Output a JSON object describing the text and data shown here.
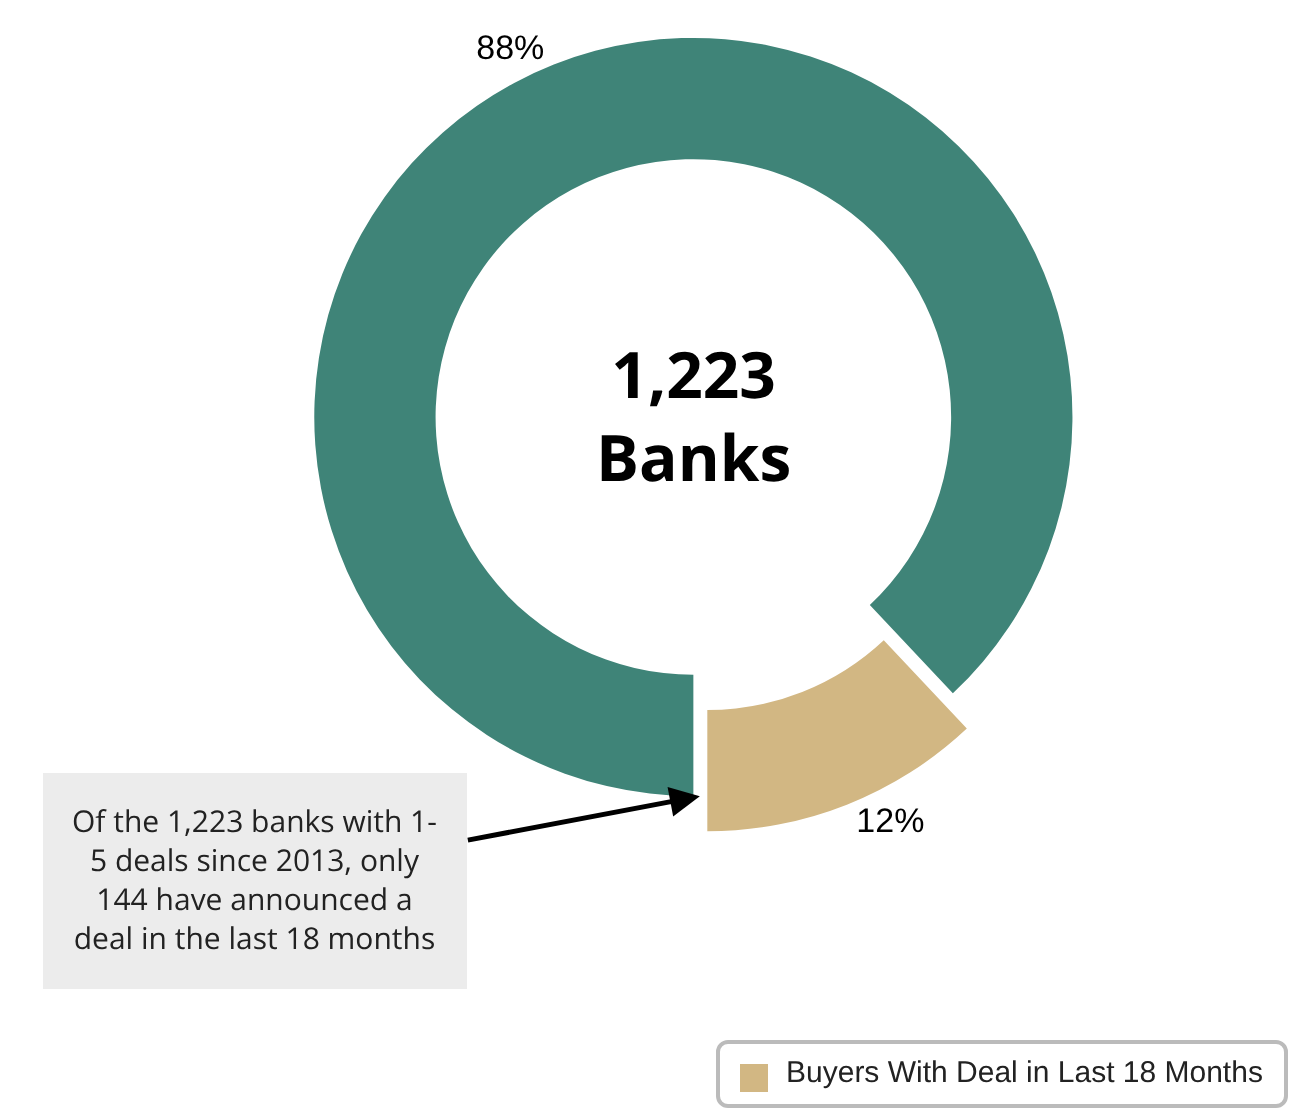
{
  "chart_data": {
    "type": "donut",
    "categories": [
      null,
      "Buyers With Deal in Last 18 Months"
    ],
    "values": [
      88,
      12
    ],
    "colors": [
      "#3f8478",
      "#d2b783"
    ],
    "value_labels": [
      "88%",
      "12%"
    ],
    "legend": "bottom right",
    "annotations": [
      "1,223\nBanks",
      "Of the 1,223 banks with 1-\n5 deals since 2013, only\n144 have announced a\ndeal in the last 18 months"
    ]
  }
}
